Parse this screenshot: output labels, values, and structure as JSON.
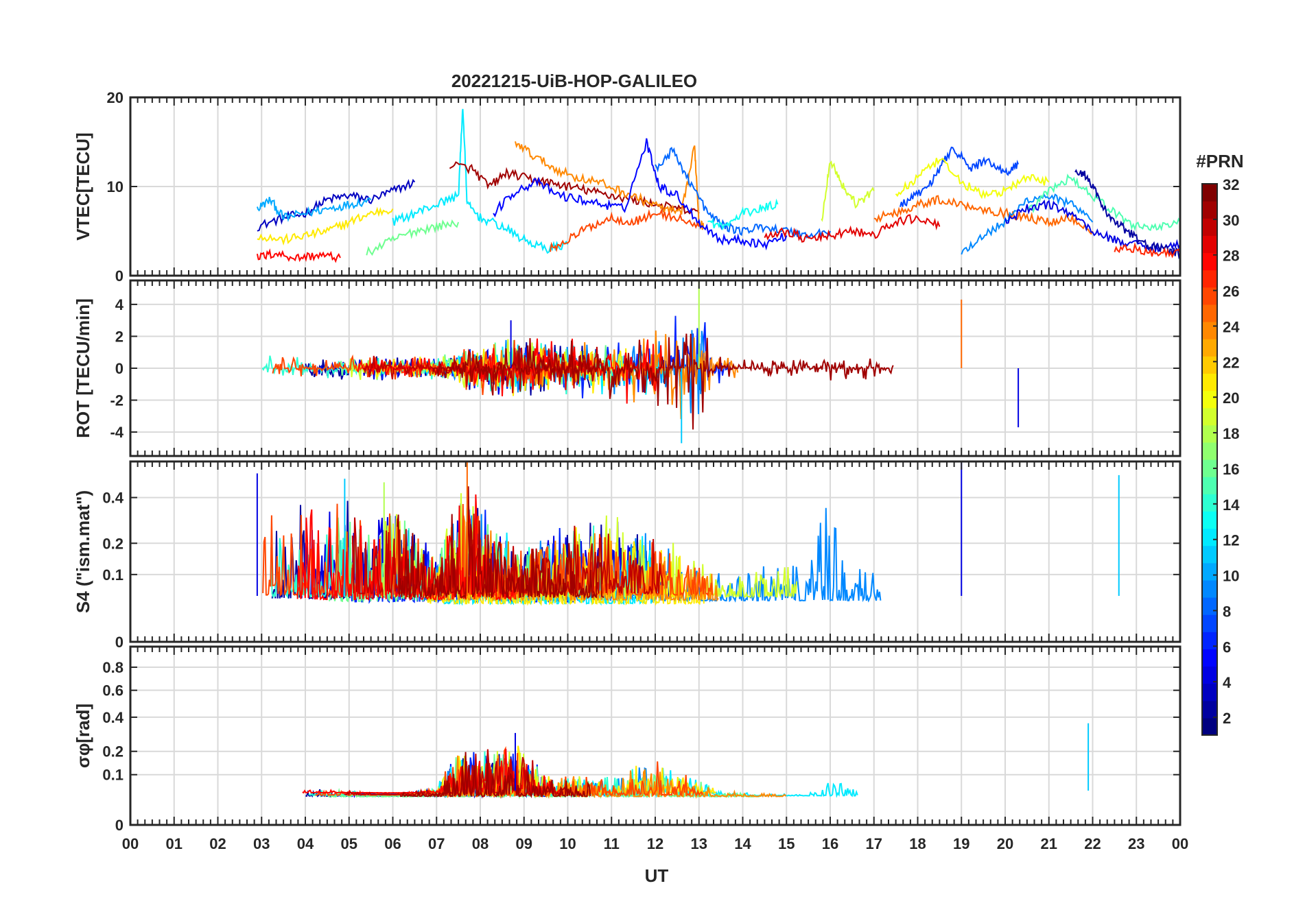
{
  "figure": {
    "title": "20221215-UiB-HOP-GALILEO",
    "xlabel": "UT",
    "x_tick_labels": [
      "00",
      "01",
      "02",
      "03",
      "04",
      "05",
      "06",
      "07",
      "08",
      "09",
      "10",
      "11",
      "12",
      "13",
      "14",
      "15",
      "16",
      "17",
      "18",
      "19",
      "20",
      "21",
      "22",
      "23",
      "00"
    ],
    "colorbar": {
      "title": "#PRN",
      "range": [
        1,
        32
      ],
      "tick_values": [
        2,
        4,
        6,
        8,
        10,
        12,
        14,
        16,
        18,
        20,
        22,
        24,
        26,
        28,
        30,
        32
      ],
      "tick_labels": [
        "2",
        "4",
        "6",
        "8",
        "10",
        "12",
        "14",
        "16",
        "18",
        "20",
        "22",
        "24",
        "26",
        "28",
        "30",
        "32"
      ],
      "colormap": "jet"
    }
  },
  "chart_data": [
    {
      "type": "line",
      "panel": "vtec",
      "ylabel": "VTEC[TECU]",
      "xlim": [
        0,
        24
      ],
      "ylim": [
        0,
        20
      ],
      "y_ticks": [
        0,
        10,
        20
      ],
      "y_tick_labels": [
        "0",
        "10",
        "20"
      ],
      "grid": true,
      "x_units": "hours UT",
      "series": [
        {
          "prn": 3,
          "x": [
            2.9,
            3.5,
            4.0,
            4.5,
            5.0,
            5.5,
            6.0,
            6.5
          ],
          "y": [
            5.5,
            6.5,
            7.0,
            8.5,
            9.0,
            8.5,
            9.5,
            10.5
          ]
        },
        {
          "prn": 10,
          "x": [
            2.9,
            3.2,
            3.5,
            4.0,
            4.5,
            5.0,
            5.5
          ],
          "y": [
            7.5,
            8.5,
            6.5,
            7.0,
            7.5,
            8.0,
            8.5
          ]
        },
        {
          "prn": 21,
          "x": [
            2.9,
            3.5,
            4.0,
            4.5,
            5.0,
            5.5,
            6.0
          ],
          "y": [
            4.5,
            4.0,
            4.5,
            5.0,
            6.0,
            7.0,
            7.5
          ]
        },
        {
          "prn": 28,
          "x": [
            2.9,
            3.3,
            3.8,
            4.3,
            4.8
          ],
          "y": [
            2.0,
            2.5,
            2.0,
            2.3,
            2.0
          ]
        },
        {
          "prn": 16,
          "x": [
            5.4,
            6.0,
            6.5,
            7.0,
            7.5
          ],
          "y": [
            2.5,
            4.0,
            5.0,
            5.5,
            6.0
          ]
        },
        {
          "prn": 12,
          "x": [
            6.0,
            6.5,
            7.0,
            7.5,
            7.6,
            7.7,
            8.0,
            8.5,
            9.0,
            9.5,
            10.0
          ],
          "y": [
            6.0,
            7.0,
            8.0,
            9.0,
            19.0,
            8.0,
            6.5,
            5.5,
            4.0,
            3.0,
            3.5
          ]
        },
        {
          "prn": 31,
          "x": [
            7.3,
            7.8,
            8.2,
            8.6,
            9.0,
            9.5,
            10.0,
            10.5,
            11.0,
            11.5,
            12.0,
            12.5,
            13.0
          ],
          "y": [
            12.5,
            12.0,
            10.0,
            11.5,
            11.0,
            10.5,
            10.0,
            9.5,
            9.0,
            8.5,
            8.0,
            7.5,
            7.0
          ]
        },
        {
          "prn": 24,
          "x": [
            8.8,
            9.2,
            9.7,
            10.2,
            10.7,
            11.2,
            11.7,
            12.2,
            12.6,
            12.9,
            13.0,
            13.1
          ],
          "y": [
            15.0,
            13.5,
            12.0,
            11.0,
            10.5,
            9.5,
            8.5,
            7.5,
            7.0,
            14.5,
            6.0,
            5.5
          ]
        },
        {
          "prn": 5,
          "x": [
            8.3,
            8.8,
            9.3,
            9.8,
            10.3,
            10.8,
            11.3,
            11.8,
            12.1,
            12.5,
            13.0,
            13.5,
            14.0,
            14.5,
            15.0
          ],
          "y": [
            7.0,
            9.5,
            10.5,
            9.0,
            8.5,
            8.0,
            7.5,
            15.0,
            10.0,
            9.0,
            6.0,
            4.0,
            4.0,
            3.5,
            4.5
          ]
        },
        {
          "prn": 26,
          "x": [
            9.6,
            10.0,
            10.5,
            11.0,
            11.5,
            12.0,
            12.5,
            13.0
          ],
          "y": [
            3.0,
            4.0,
            5.5,
            6.5,
            6.0,
            7.0,
            6.5,
            5.5
          ]
        },
        {
          "prn": 8,
          "x": [
            12.0,
            12.4,
            12.8,
            13.2,
            13.6,
            14.0,
            14.5,
            15.0,
            15.5,
            16.0
          ],
          "y": [
            12.0,
            14.0,
            10.5,
            7.0,
            5.5,
            5.0,
            5.5,
            5.0,
            4.5,
            5.0
          ]
        },
        {
          "prn": 13,
          "x": [
            13.2,
            13.6,
            14.0,
            14.4,
            14.8
          ],
          "y": [
            6.0,
            5.5,
            7.0,
            7.5,
            8.0
          ]
        },
        {
          "prn": 19,
          "x": [
            15.8,
            16.0,
            16.3,
            16.6,
            17.0
          ],
          "y": [
            6.0,
            13.0,
            10.0,
            8.0,
            9.5
          ]
        },
        {
          "prn": 29,
          "x": [
            14.5,
            15.0,
            15.5,
            16.0,
            16.5,
            17.0,
            17.5,
            18.0,
            18.5
          ],
          "y": [
            4.5,
            5.0,
            4.0,
            4.5,
            5.0,
            4.5,
            6.0,
            6.5,
            5.5
          ]
        },
        {
          "prn": 7,
          "x": [
            17.6,
            18.0,
            18.4,
            18.8,
            19.2,
            19.6,
            20.0,
            20.3
          ],
          "y": [
            8.0,
            9.0,
            11.0,
            14.5,
            12.0,
            13.0,
            11.5,
            12.5
          ]
        },
        {
          "prn": 20,
          "x": [
            17.5,
            18.0,
            18.5,
            19.0,
            19.5,
            20.0,
            20.5,
            21.0
          ],
          "y": [
            9.0,
            11.0,
            13.0,
            10.5,
            9.0,
            9.5,
            11.0,
            10.5
          ]
        },
        {
          "prn": 25,
          "x": [
            17.0,
            17.5,
            18.0,
            18.5,
            19.0,
            19.5,
            20.0,
            20.5,
            21.0,
            21.5,
            22.0
          ],
          "y": [
            6.5,
            7.0,
            8.0,
            8.5,
            8.0,
            7.5,
            7.0,
            6.5,
            6.0,
            6.5,
            5.0
          ]
        },
        {
          "prn": 9,
          "x": [
            19.0,
            19.5,
            20.0,
            20.5,
            21.0,
            21.5,
            22.0
          ],
          "y": [
            2.5,
            4.5,
            6.0,
            8.5,
            9.0,
            8.0,
            6.0
          ]
        },
        {
          "prn": 15,
          "x": [
            20.5,
            21.0,
            21.5,
            22.0,
            22.5,
            23.0,
            23.5,
            24.0
          ],
          "y": [
            7.0,
            9.5,
            11.0,
            9.0,
            7.0,
            5.5,
            5.5,
            6.0
          ]
        },
        {
          "prn": 4,
          "x": [
            20.0,
            20.5,
            21.0,
            21.5,
            22.0,
            22.5,
            23.0,
            23.5,
            24.0
          ],
          "y": [
            6.0,
            7.5,
            8.0,
            7.0,
            5.0,
            4.0,
            3.5,
            3.0,
            3.5
          ]
        },
        {
          "prn": 2,
          "x": [
            21.6,
            21.9,
            22.2,
            22.5,
            22.8,
            23.2,
            23.6,
            24.0
          ],
          "y": [
            12.0,
            11.0,
            8.0,
            6.0,
            5.0,
            3.5,
            3.0,
            2.5
          ]
        },
        {
          "prn": 27,
          "x": [
            22.5,
            23.0,
            23.5,
            24.0
          ],
          "y": [
            3.0,
            3.0,
            2.5,
            2.5
          ]
        }
      ]
    },
    {
      "type": "line",
      "panel": "rot",
      "ylabel": "ROT [TECU/min]",
      "xlim": [
        0,
        24
      ],
      "ylim": [
        -5.5,
        5.5
      ],
      "y_ticks": [
        -4,
        -2,
        0,
        2,
        4
      ],
      "y_tick_labels": [
        "-4",
        "-2",
        "0",
        "2",
        "4"
      ],
      "grid": true,
      "data_span_hours": [
        2.9,
        24.0
      ],
      "envelope_amplitude": {
        "x": [
          2.9,
          5.0,
          7.0,
          7.8,
          8.5,
          9.5,
          11.0,
          12.0,
          12.6,
          13.0,
          13.3,
          14.0,
          15.5,
          16.5,
          17.5,
          18.5,
          19.5,
          20.5,
          21.5,
          22.5,
          24.0
        ],
        "y": [
          0.6,
          0.7,
          0.6,
          1.2,
          1.6,
          1.5,
          1.6,
          2.2,
          3.0,
          4.0,
          1.0,
          0.6,
          0.6,
          0.9,
          0.8,
          1.3,
          1.6,
          1.3,
          1.0,
          0.9,
          0.6
        ]
      },
      "peaks": {
        "x": [
          8.7,
          12.6,
          13.0,
          19.0,
          20.3
        ],
        "y": [
          3.0,
          -4.7,
          5.5,
          4.3,
          -3.7
        ]
      }
    },
    {
      "type": "line",
      "panel": "s4",
      "ylabel": "S4 (\"ism.mat\")",
      "xlim": [
        0,
        24
      ],
      "ylim": [
        0,
        0.6
      ],
      "y_ticks": [
        0,
        0.1,
        0.2,
        0.4
      ],
      "y_tick_labels": [
        "0",
        "0.1",
        "0.2",
        "0.4"
      ],
      "grid": true,
      "data_span_hours": [
        2.9,
        24.0
      ],
      "envelope_amplitude": {
        "x": [
          2.9,
          3.5,
          4.5,
          5.0,
          5.5,
          6.0,
          7.0,
          7.7,
          8.3,
          9.0,
          10.0,
          11.0,
          12.0,
          13.0,
          14.0,
          15.0,
          15.8,
          16.5,
          17.5,
          18.5,
          19.0,
          19.5,
          20.5,
          21.0,
          22.0,
          22.5,
          23.5,
          24.0
        ],
        "y": [
          0.5,
          0.35,
          0.4,
          0.45,
          0.3,
          0.45,
          0.15,
          0.6,
          0.3,
          0.2,
          0.3,
          0.35,
          0.25,
          0.15,
          0.12,
          0.15,
          0.45,
          0.15,
          0.18,
          0.25,
          0.6,
          0.35,
          0.25,
          0.35,
          0.15,
          0.5,
          0.15,
          0.06
        ]
      },
      "peaks": {
        "x": [
          2.9,
          4.9,
          5.8,
          7.7,
          19.0,
          22.6
        ],
        "y": [
          0.53,
          0.5,
          0.48,
          0.6,
          0.6,
          0.52
        ]
      }
    },
    {
      "type": "line",
      "panel": "sigma_phi",
      "ylabel": "σφ[rad]",
      "xlim": [
        0,
        24
      ],
      "ylim": [
        0,
        1.0
      ],
      "y_ticks": [
        0,
        0.1,
        0.2,
        0.4,
        0.6,
        0.8
      ],
      "y_tick_labels": [
        "0",
        "0.1",
        "0.2",
        "0.4",
        "0.6",
        "0.8"
      ],
      "grid": true,
      "data_span_hours": [
        2.9,
        24.0
      ],
      "envelope_amplitude": {
        "x": [
          2.9,
          4.0,
          6.0,
          7.0,
          7.5,
          8.0,
          8.8,
          9.5,
          11.0,
          11.8,
          12.5,
          13.5,
          15.5,
          16.0,
          17.0,
          19.0,
          21.0,
          21.9,
          22.3,
          23.0,
          24.0
        ],
        "y": [
          0.04,
          0.06,
          0.04,
          0.06,
          0.22,
          0.2,
          0.28,
          0.1,
          0.1,
          0.18,
          0.12,
          0.05,
          0.04,
          0.12,
          0.06,
          0.08,
          0.1,
          0.35,
          0.15,
          0.1,
          0.06
        ]
      },
      "peaks": {
        "x": [
          8.8,
          21.9
        ],
        "y": [
          0.3,
          0.36
        ]
      }
    }
  ]
}
